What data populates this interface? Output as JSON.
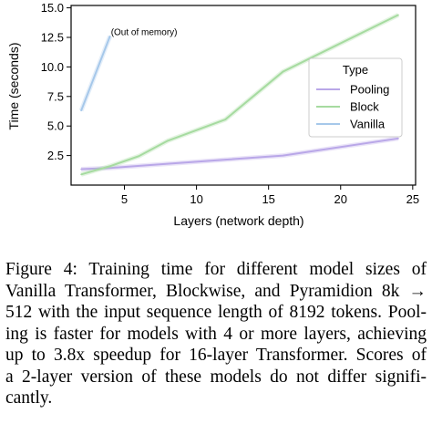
{
  "chart_data": {
    "type": "line",
    "title": "",
    "xlabel": "Layers (network depth)",
    "ylabel": "Time (seconds)",
    "xlim": [
      1.3,
      25.2
    ],
    "ylim": [
      0.0,
      15.2
    ],
    "xticks": [
      5,
      10,
      15,
      20,
      25
    ],
    "yticks": [
      2.5,
      5.0,
      7.5,
      10.0,
      12.5,
      15.0
    ],
    "xtick_labels": [
      "5",
      "10",
      "15",
      "20",
      "25"
    ],
    "ytick_labels": [
      "2.5",
      "5.0",
      "7.5",
      "10.0",
      "12.5",
      "15.0"
    ],
    "grid": false,
    "legend": {
      "title": "Type",
      "placement": "right"
    },
    "series": [
      {
        "name": "Pooling",
        "color": "#b9a7e8",
        "x": [
          2,
          4,
          8,
          12,
          16,
          24
        ],
        "y": [
          1.35,
          1.45,
          1.8,
          2.15,
          2.5,
          3.95
        ]
      },
      {
        "name": "Block",
        "color": "#a6dba0",
        "x": [
          2,
          4,
          6,
          8,
          12,
          16,
          24
        ],
        "y": [
          0.9,
          1.6,
          2.45,
          3.75,
          5.55,
          9.6,
          14.4
        ]
      },
      {
        "name": "Vanilla",
        "color": "#a6c8ea",
        "x": [
          2,
          4
        ],
        "y": [
          6.3,
          12.6
        ]
      }
    ],
    "annotations": [
      {
        "text": "(Out of memory)",
        "x": 4,
        "y": 12.6
      }
    ]
  },
  "caption": {
    "lines": [
      "Figure 4: Training time for different model sizes of",
      "Vanilla Transformer, Blockwise, and Pyramidion 8k →",
      "512 with the input sequence length of 8192 tokens. Pool-",
      "ing is faster for models with 4 or more layers, achieving",
      "up to 3.8x speedup for 16-layer Transformer. Scores of",
      "a 2-layer version of these models do not differ signifi-",
      "cantly."
    ]
  }
}
